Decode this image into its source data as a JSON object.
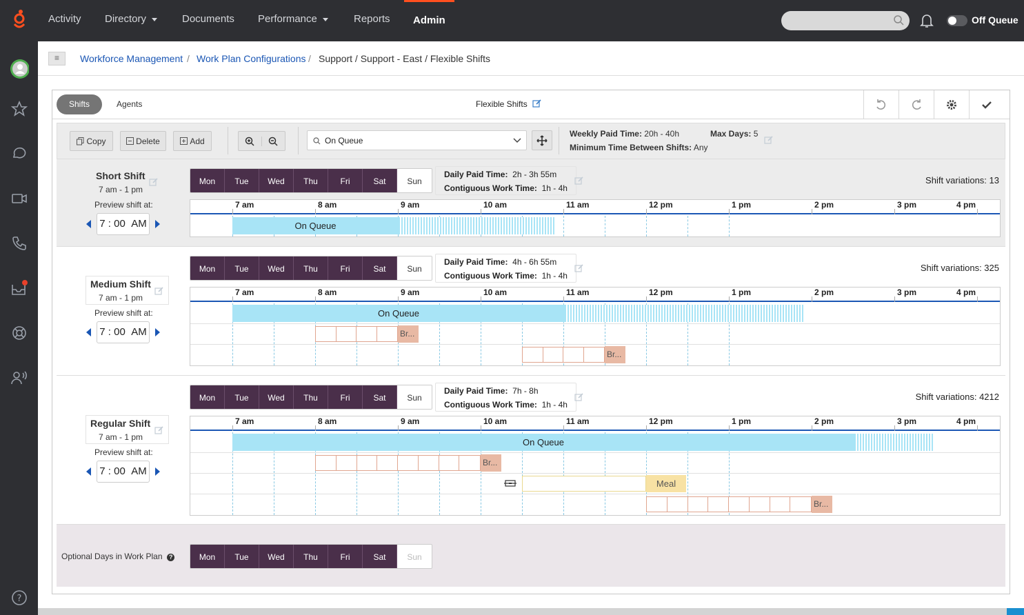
{
  "nav": {
    "items": [
      "Activity",
      "Directory",
      "Documents",
      "Performance",
      "Reports",
      "Admin"
    ],
    "queue_label": "Off Queue"
  },
  "breadcrumb": {
    "wfm": "Workforce Management",
    "wpc": "Work Plan Configurations",
    "current": "Support / Support - East / Flexible Shifts",
    "sep": "/"
  },
  "panel": {
    "tab_shifts": "Shifts",
    "tab_agents": "Agents",
    "title": "Flexible Shifts"
  },
  "toolbar": {
    "copy": "Copy",
    "delete": "Delete",
    "add": "Add",
    "activity": "On Queue",
    "weekly_label": "Weekly Paid Time:",
    "weekly_value": "20h - 40h",
    "maxdays_label": "Max Days:",
    "maxdays_value": "5",
    "mintime_label": "Minimum Time Between Shifts:",
    "mintime_value": "Any"
  },
  "days": [
    "Mon",
    "Tue",
    "Wed",
    "Thu",
    "Fri",
    "Sat",
    "Sun"
  ],
  "hours": [
    "7 am",
    "8 am",
    "9 am",
    "10 am",
    "11 am",
    "12 pm",
    "1 pm",
    "2 pm",
    "3 pm",
    "4 pm"
  ],
  "preview_label": "Preview shift at:",
  "daily_label": "Daily Paid Time:",
  "contig_label": "Contiguous Work Time:",
  "shifts": [
    {
      "name": "Short Shift",
      "range": "7 am - 1 pm",
      "time_h": "7",
      "time_m": "00",
      "time_ap": "AM",
      "daily": "2h - 3h 55m",
      "contig": "1h - 4h",
      "variations": "Shift variations: 13",
      "onqueue": "On Queue"
    },
    {
      "name": "Medium Shift",
      "range": "7 am - 1 pm",
      "time_h": "7",
      "time_m": "00",
      "time_ap": "AM",
      "daily": "4h - 6h 55m",
      "contig": "1h - 4h",
      "variations": "Shift variations: 325",
      "onqueue": "On Queue",
      "break": "Br..."
    },
    {
      "name": "Regular Shift",
      "range": "7 am - 1 pm",
      "time_h": "7",
      "time_m": "00",
      "time_ap": "AM",
      "daily": "7h - 8h",
      "contig": "1h - 4h",
      "variations": "Shift variations: 4212",
      "onqueue": "On Queue",
      "break": "Br...",
      "meal": "Meal"
    }
  ],
  "optional": {
    "label": "Optional Days in Work Plan"
  },
  "colors": {
    "nav_bg": "#2e2f33",
    "accent": "#1a56b4",
    "day_selected": "#4a2f4a",
    "on_queue": "#a8e4f6",
    "break": "#e8b9a4",
    "meal": "#f8e2a4",
    "active_tab_marker": "#ff4f1f"
  }
}
